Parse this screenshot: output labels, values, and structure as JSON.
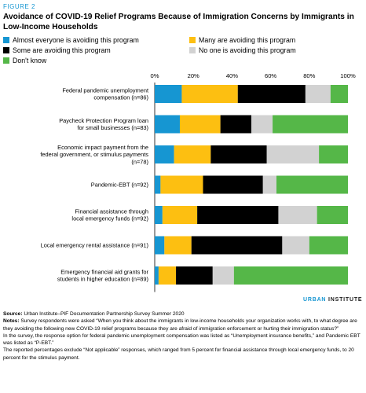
{
  "figure_label": "FIGURE 2",
  "title": "Avoidance of COVID-19 Relief Programs Because of Immigration Concerns by Immigrants in Low-Income Households",
  "brand": {
    "part1": "URBAN",
    "part2": " INSTITUTE"
  },
  "source": {
    "label": "Source:",
    "text": " Urban Institute–PIF Documentation Partnership Survey Summer 2020"
  },
  "notes": {
    "label": "Notes:",
    "text": " Survey respondents were asked “When you think about the immigrants in low-income households your organization works with, to what degree are they avoiding the following new COVID-19 relief programs because they are afraid of immigration enforcement or hurting their immigration status?”",
    "line2": "In the survey, the response option for federal pandemic unemployment compensation was listed as “Unemployment insurance benefits,” and Pandemic EBT was listed as “P-EBT.”",
    "line3": "The reported percentages exclude “Not applicable” responses, which ranged from 5 percent for financial assistance through local emergency funds, to 20 percent for the stimulus payment."
  },
  "chart_data": {
    "type": "bar",
    "orientation": "horizontal",
    "stacked": true,
    "title": "Avoidance of COVID-19 Relief Programs Because of Immigration Concerns by Immigrants in Low-Income Households",
    "xlim": [
      0,
      100
    ],
    "x_ticks": [
      "0%",
      "20%",
      "40%",
      "60%",
      "80%",
      "100%"
    ],
    "grid": false,
    "legend_position": "top",
    "categories": [
      [
        "Federal pandemic unemployment",
        "compensation (n=86)"
      ],
      [
        "Paycheck Protection Program loan",
        "for small businesses (n=83)"
      ],
      [
        "Economic impact payment from the",
        "federal government, or stimulus payments",
        "(n=78)"
      ],
      [
        "Pandemic-EBT (n=92)"
      ],
      [
        "Financial assistance through",
        "local emergency funds (n=92)"
      ],
      [
        "Local emergency rental assistance (n=91)"
      ],
      [
        "Emergency financial aid grants for",
        "students in higher education (n=89)"
      ]
    ],
    "series": [
      {
        "name": "Almost everyone is avoiding this program",
        "color": "#1696d2",
        "values": [
          14,
          13,
          10,
          3,
          4,
          5,
          2
        ]
      },
      {
        "name": "Many are avoiding this program",
        "color": "#fdbf11",
        "values": [
          29,
          21,
          19,
          22,
          18,
          14,
          9
        ]
      },
      {
        "name": "Some are avoiding this program",
        "color": "#000000",
        "values": [
          35,
          16,
          29,
          31,
          42,
          47,
          19
        ]
      },
      {
        "name": "No one is avoiding this program",
        "color": "#d2d2d2",
        "values": [
          13,
          11,
          27,
          7,
          20,
          14,
          11
        ]
      },
      {
        "name": "Don't know",
        "color": "#55b748",
        "values": [
          9,
          39,
          15,
          37,
          16,
          20,
          59
        ]
      }
    ]
  }
}
